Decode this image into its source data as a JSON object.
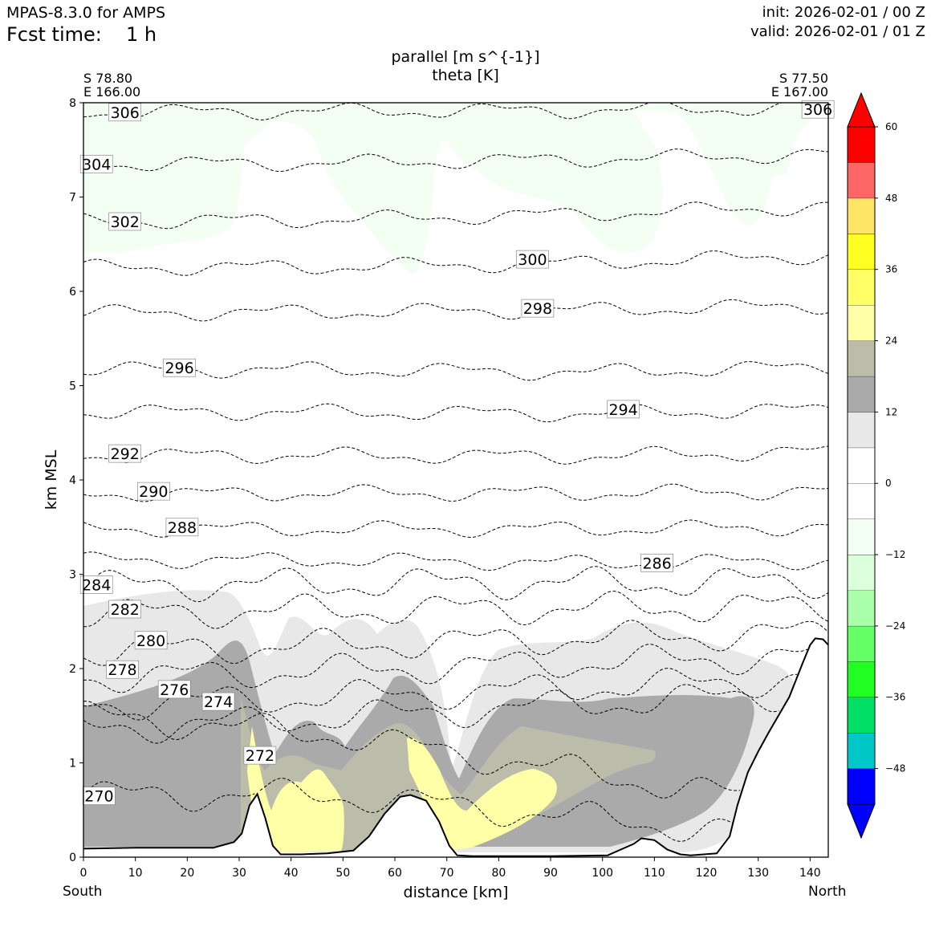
{
  "header": {
    "model": "MPAS-8.3.0 for AMPS",
    "fcst_label": "Fcst time:",
    "fcst_value": "1 h",
    "init": "init: 2026-02-01 / 00 Z",
    "valid": "valid: 2026-02-01 / 01 Z"
  },
  "transect": {
    "start_lat": "S 78.80",
    "start_lon": "E 166.00",
    "end_lat": "S 77.50",
    "end_lon": "E 167.00",
    "south": "South",
    "north": "North"
  },
  "chart_data": {
    "type": "cross-section",
    "title": "parallel [m s^{-1}]",
    "subtitle": "theta [K]",
    "xlabel": "distance [km]",
    "ylabel": "km MSL",
    "xlim": [
      0,
      143.5
    ],
    "ylim": [
      0,
      8
    ],
    "xticks": [
      0,
      10,
      20,
      30,
      40,
      50,
      60,
      70,
      80,
      90,
      100,
      110,
      120,
      130,
      140
    ],
    "yticks": [
      0,
      1,
      2,
      3,
      4,
      5,
      6,
      7,
      8
    ],
    "terrain": {
      "x": [
        0,
        10,
        25,
        29,
        30.5,
        32,
        33.5,
        35,
        36.5,
        38,
        42,
        47,
        52,
        55,
        58,
        61,
        63,
        66,
        68.5,
        70.5,
        72,
        75,
        80,
        90,
        101,
        106,
        107.5,
        110,
        112.5,
        115,
        117,
        122,
        124.5,
        126,
        128,
        130,
        132,
        136,
        138.5,
        140,
        141,
        142.5,
        143.5
      ],
      "km": [
        0.09,
        0.1,
        0.1,
        0.16,
        0.25,
        0.55,
        0.67,
        0.42,
        0.12,
        0.03,
        0.03,
        0.04,
        0.07,
        0.22,
        0.46,
        0.64,
        0.66,
        0.6,
        0.38,
        0.12,
        0.02,
        0.01,
        0.01,
        0.01,
        0.02,
        0.14,
        0.2,
        0.18,
        0.08,
        0.03,
        0.02,
        0.04,
        0.22,
        0.55,
        0.9,
        1.12,
        1.32,
        1.7,
        2.05,
        2.25,
        2.32,
        2.31,
        2.25
      ]
    },
    "theta_contours": [
      {
        "level": 270,
        "label": "270",
        "y": [
          0.66,
          0.66,
          0.42,
          0.18
        ]
      },
      {
        "level": 272,
        "label": "272",
        "y": [
          1.5,
          1.3,
          0.9,
          0.5
        ]
      },
      {
        "level": 274,
        "label": "274",
        "y": [
          1.35,
          1.48,
          1.62,
          1.75
        ]
      },
      {
        "level": 276,
        "label": "276",
        "y": [
          1.61,
          1.7,
          1.8,
          1.9
        ]
      },
      {
        "level": 278,
        "label": "278",
        "y": [
          1.9,
          1.98,
          2.06,
          2.14
        ]
      },
      {
        "level": 280,
        "label": "280",
        "y": [
          2.18,
          2.25,
          2.32,
          2.38
        ]
      },
      {
        "level": 282,
        "label": "282",
        "y": [
          2.58,
          2.62,
          2.64,
          2.66
        ]
      },
      {
        "level": 284,
        "label": "284",
        "y": [
          2.88,
          2.9,
          2.91,
          2.92
        ]
      },
      {
        "level": 286,
        "label": "286",
        "y": [
          3.15,
          3.15,
          3.12,
          3.14
        ]
      },
      {
        "level": 288,
        "label": "288",
        "y": [
          3.48,
          3.48,
          3.48,
          3.5
        ]
      },
      {
        "level": 290,
        "label": "290",
        "y": [
          3.85,
          3.86,
          3.86,
          3.88
        ]
      },
      {
        "level": 292,
        "label": "292",
        "y": [
          4.26,
          4.26,
          4.25,
          4.3
        ]
      },
      {
        "level": 294,
        "label": "294",
        "y": [
          4.72,
          4.72,
          4.7,
          4.75
        ]
      },
      {
        "level": 296,
        "label": "296",
        "y": [
          5.17,
          5.17,
          5.14,
          5.2
        ]
      },
      {
        "level": 298,
        "label": "298",
        "y": [
          5.77,
          5.78,
          5.8,
          5.85
        ]
      },
      {
        "level": 300,
        "label": "300",
        "y": [
          6.25,
          6.26,
          6.3,
          6.38
        ]
      },
      {
        "level": 302,
        "label": "302",
        "y": [
          6.74,
          6.76,
          6.82,
          6.9
        ]
      },
      {
        "level": 304,
        "label": "304",
        "y": [
          7.35,
          7.36,
          7.4,
          7.45
        ]
      },
      {
        "level": 306,
        "label": "306",
        "y": [
          7.9,
          7.91,
          7.92,
          7.95
        ]
      }
    ],
    "theta_label_positions_km": [
      {
        "label": "270",
        "x": 3,
        "y": 0.65
      },
      {
        "label": "272",
        "x": 34,
        "y": 1.08
      },
      {
        "label": "274",
        "x": 26,
        "y": 1.65
      },
      {
        "label": "276",
        "x": 17.5,
        "y": 1.78
      },
      {
        "label": "278",
        "x": 7.5,
        "y": 1.99
      },
      {
        "label": "280",
        "x": 13,
        "y": 2.3
      },
      {
        "label": "282",
        "x": 8,
        "y": 2.63
      },
      {
        "label": "284",
        "x": 2.5,
        "y": 2.89
      },
      {
        "label": "286",
        "x": 110.5,
        "y": 3.12
      },
      {
        "label": "288",
        "x": 19,
        "y": 3.5
      },
      {
        "label": "290",
        "x": 13.5,
        "y": 3.88
      },
      {
        "label": "292",
        "x": 8,
        "y": 4.28
      },
      {
        "label": "294",
        "x": 104,
        "y": 4.75
      },
      {
        "label": "296",
        "x": 18.5,
        "y": 5.19
      },
      {
        "label": "298",
        "x": 87.5,
        "y": 5.82
      },
      {
        "label": "300",
        "x": 86.5,
        "y": 6.34
      },
      {
        "label": "302",
        "x": 8,
        "y": 6.74
      },
      {
        "label": "304",
        "x": 2.5,
        "y": 7.35
      },
      {
        "label": "306",
        "x": 8,
        "y": 7.9
      },
      {
        "label": "306",
        "x": 141.5,
        "y": 7.93
      }
    ],
    "colorbar": {
      "ticks": [
        -48,
        -36,
        -24,
        -12,
        0,
        12,
        24,
        36,
        48,
        60
      ],
      "tick_labels": [
        "−48",
        "−36",
        "−24",
        "−12",
        "0",
        "12",
        "24",
        "36",
        "48",
        "60"
      ],
      "levels": [
        -54,
        -48,
        -42,
        -36,
        -30,
        -24,
        -18,
        -12,
        -6,
        0,
        6,
        12,
        18,
        24,
        30,
        36,
        42,
        48,
        54,
        60
      ],
      "colors": [
        "#0000ff",
        "#00c8c8",
        "#00e066",
        "#22ff22",
        "#66ff66",
        "#aaffaa",
        "#dcffdc",
        "#f2fff2",
        "#ffffff",
        "#ffffff",
        "#e8e8e8",
        "#aaaaaa",
        "#bcbcaa",
        "#ffffa8",
        "#ffff66",
        "#ffff22",
        "#ffe566",
        "#ff6666",
        "#ff0000"
      ],
      "under_color": "#0000ff",
      "over_color": "#ff0000"
    },
    "fills": [
      {
        "name": "light-green-upper",
        "value": -6,
        "color": "#f2fff2"
      },
      {
        "name": "light-gray-lower",
        "value": 8,
        "color": "#e8e8e8"
      },
      {
        "name": "dark-gray-core",
        "value": 15,
        "color": "#aaaaaa"
      },
      {
        "name": "olive-gray",
        "value": 21,
        "color": "#bcbcaa"
      },
      {
        "name": "pale-yellow",
        "value": 27,
        "color": "#ffffa8"
      }
    ]
  }
}
